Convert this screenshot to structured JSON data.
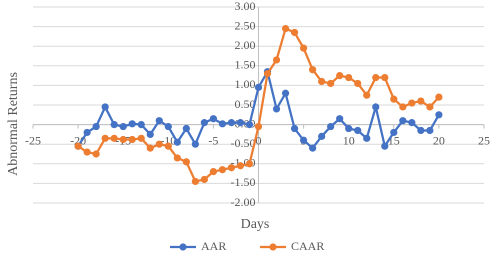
{
  "chart_data": {
    "type": "line",
    "x_label": "Days",
    "y_label": "Abnormal Returns",
    "x": [
      -20,
      -19,
      -18,
      -17,
      -16,
      -15,
      -14,
      -13,
      -12,
      -11,
      -10,
      -9,
      -8,
      -7,
      -6,
      -5,
      -4,
      -3,
      -2,
      -1,
      0,
      1,
      2,
      3,
      4,
      5,
      6,
      7,
      8,
      9,
      10,
      11,
      12,
      13,
      14,
      15,
      16,
      17,
      18,
      19,
      20
    ],
    "series": [
      {
        "name": "AAR",
        "color": "#4472c4",
        "values": [
          -0.55,
          -0.2,
          -0.05,
          0.45,
          0.0,
          -0.05,
          0.02,
          0.0,
          -0.25,
          0.1,
          -0.05,
          -0.45,
          -0.1,
          -0.5,
          0.05,
          0.15,
          0.02,
          0.05,
          0.05,
          0.0,
          0.95,
          1.35,
          0.4,
          0.8,
          -0.1,
          -0.4,
          -0.6,
          -0.3,
          -0.05,
          0.15,
          -0.1,
          -0.15,
          -0.35,
          0.45,
          -0.55,
          -0.2,
          0.1,
          0.05,
          -0.15,
          -0.15,
          0.25
        ]
      },
      {
        "name": "CAAR",
        "color": "#ed7d31",
        "values": [
          -0.55,
          -0.7,
          -0.75,
          -0.35,
          -0.35,
          -0.38,
          -0.38,
          -0.35,
          -0.6,
          -0.5,
          -0.55,
          -0.85,
          -0.95,
          -1.45,
          -1.4,
          -1.2,
          -1.15,
          -1.1,
          -1.05,
          -1.0,
          -0.05,
          1.3,
          1.65,
          2.45,
          2.35,
          1.95,
          1.4,
          1.1,
          1.05,
          1.25,
          1.2,
          1.05,
          0.75,
          1.2,
          1.2,
          0.65,
          0.45,
          0.55,
          0.6,
          0.45,
          0.7
        ]
      }
    ],
    "xlim": [
      -25,
      25
    ],
    "xticks": [
      -25,
      -20,
      -15,
      -10,
      -5,
      0,
      5,
      10,
      15,
      20,
      25
    ],
    "ylim": [
      -2,
      3
    ],
    "yticks": [
      {
        "value": -2,
        "label": "-2.00"
      },
      {
        "value": -1.5,
        "label": "-1.50"
      },
      {
        "value": -1,
        "label": "-1.00"
      },
      {
        "value": -0.5,
        "label": "-0.50"
      },
      {
        "value": 0,
        "label": "0.00"
      },
      {
        "value": 0.5,
        "label": "0.50"
      },
      {
        "value": 1,
        "label": "1.00"
      },
      {
        "value": 1.5,
        "label": "1.50"
      },
      {
        "value": 2,
        "label": "2.00"
      },
      {
        "value": 2.5,
        "label": "2.50"
      },
      {
        "value": 3,
        "label": "3.00"
      }
    ],
    "grid": true,
    "legend": "bottom"
  }
}
